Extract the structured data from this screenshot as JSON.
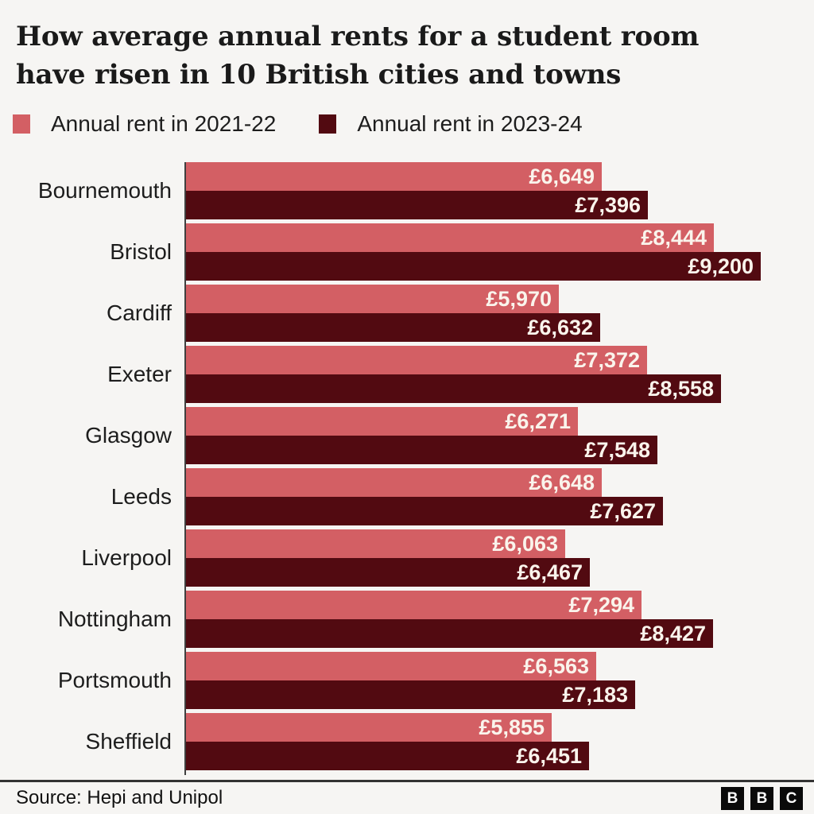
{
  "header": {
    "title_lines": [
      "How average annual rents for a student room",
      "have risen in 10 British cities and towns"
    ]
  },
  "legend": {
    "items": [
      {
        "label": "Annual rent in 2021-22",
        "color": "#d35f64"
      },
      {
        "label": "Annual rent in 2023-24",
        "color": "#520a11"
      }
    ]
  },
  "chart_data": {
    "type": "bar",
    "orientation": "horizontal",
    "title": "How average annual rents for a student room have risen in 10 British cities and towns",
    "categories": [
      "Bournemouth",
      "Bristol",
      "Cardiff",
      "Exeter",
      "Glasgow",
      "Leeds",
      "Liverpool",
      "Nottingham",
      "Portsmouth",
      "Sheffield"
    ],
    "series": [
      {
        "name": "Annual rent in 2021-22",
        "color": "#d35f64",
        "values": [
          6649,
          8444,
          5970,
          7372,
          6271,
          6648,
          6063,
          7294,
          6563,
          5855
        ],
        "labels": [
          "£6,649",
          "£8,444",
          "£5,970",
          "£7,372",
          "£6,271",
          "£6,648",
          "£6,063",
          "£7,294",
          "£6,563",
          "£5,855"
        ]
      },
      {
        "name": "Annual rent in 2023-24",
        "color": "#520a11",
        "values": [
          7396,
          9200,
          6632,
          8558,
          7548,
          7627,
          6467,
          8427,
          7183,
          6451
        ],
        "labels": [
          "£7,396",
          "£9,200",
          "£6,632",
          "£8,558",
          "£7,548",
          "£7,627",
          "£6,467",
          "£8,427",
          "£7,183",
          "£6,451"
        ]
      }
    ],
    "xlim": [
      0,
      9870
    ],
    "value_prefix": "£",
    "grid": false,
    "legend_position": "top",
    "xlabel": "",
    "ylabel": ""
  },
  "footer": {
    "source": "Source: Hepi and Unipol",
    "logo_letters": [
      "B",
      "B",
      "C"
    ]
  },
  "colors": {
    "background": "#f6f5f3",
    "series_2021_22": "#d35f64",
    "series_2023_24": "#520a11",
    "axis_line": "#404040",
    "divider": "#333333",
    "title_text": "#1a1a1a",
    "value_text": "#faf4ec"
  }
}
